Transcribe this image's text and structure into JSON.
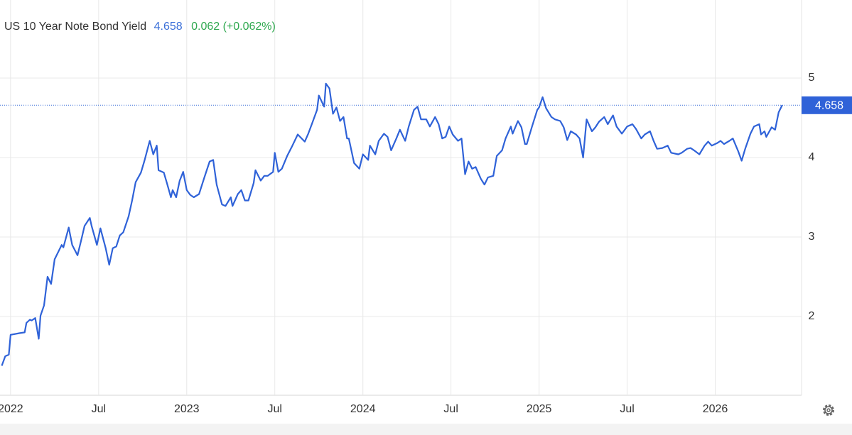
{
  "chart_data": {
    "type": "line",
    "title": "US 10 Year Note Bond Yield",
    "change": "0.062 (+0.062%)",
    "color": "#2f62d8",
    "grid": true,
    "xlim": [
      2021.94,
      2026.49
    ],
    "ylim": [
      1,
      6
    ],
    "yticks": [
      2,
      3,
      4,
      5
    ],
    "xticks": [
      2022,
      {
        "value": 2022.5,
        "label": "Jul"
      },
      2023,
      {
        "value": 2023.5,
        "label": "Jul"
      },
      2024,
      {
        "value": 2024.5,
        "label": "Jul"
      },
      2025,
      {
        "value": 2025.5,
        "label": "Jul"
      },
      2026
    ],
    "x": [
      2021.95,
      2021.97,
      2021.99,
      2022.0,
      2022.05,
      2022.08,
      2022.09,
      2022.11,
      2022.12,
      2022.14,
      2022.16,
      2022.17,
      2022.19,
      2022.21,
      2022.23,
      2022.25,
      2022.29,
      2022.3,
      2022.33,
      2022.35,
      2022.38,
      2022.4,
      2022.42,
      2022.45,
      2022.46,
      2022.49,
      2022.51,
      2022.54,
      2022.56,
      2022.58,
      2022.6,
      2022.62,
      2022.64,
      2022.67,
      2022.69,
      2022.71,
      2022.74,
      2022.76,
      2022.79,
      2022.81,
      2022.83,
      2022.84,
      2022.87,
      2022.89,
      2022.91,
      2022.92,
      2022.94,
      2022.96,
      2022.98,
      2023.0,
      2023.02,
      2023.04,
      2023.07,
      2023.1,
      2023.13,
      2023.15,
      2023.17,
      2023.2,
      2023.22,
      2023.25,
      2023.26,
      2023.29,
      2023.31,
      2023.33,
      2023.35,
      2023.38,
      2023.39,
      2023.42,
      2023.44,
      2023.46,
      2023.49,
      2023.5,
      2023.52,
      2023.54,
      2023.57,
      2023.6,
      2023.63,
      2023.67,
      2023.69,
      2023.71,
      2023.74,
      2023.75,
      2023.78,
      2023.79,
      2023.81,
      2023.83,
      2023.85,
      2023.87,
      2023.89,
      2023.91,
      2023.92,
      2023.95,
      2023.98,
      2024.0,
      2024.03,
      2024.04,
      2024.07,
      2024.09,
      2024.12,
      2024.14,
      2024.16,
      2024.19,
      2024.21,
      2024.24,
      2024.26,
      2024.29,
      2024.31,
      2024.33,
      2024.36,
      2024.38,
      2024.41,
      2024.43,
      2024.45,
      2024.47,
      2024.49,
      2024.51,
      2024.54,
      2024.56,
      2024.58,
      2024.6,
      2024.62,
      2024.64,
      2024.67,
      2024.69,
      2024.71,
      2024.74,
      2024.76,
      2024.79,
      2024.81,
      2024.84,
      2024.85,
      2024.88,
      2024.9,
      2024.92,
      2024.93,
      2024.96,
      2024.99,
      2025.0,
      2025.02,
      2025.04,
      2025.07,
      2025.09,
      2025.12,
      2025.14,
      2025.16,
      2025.18,
      2025.21,
      2025.23,
      2025.25,
      2025.27,
      2025.3,
      2025.32,
      2025.34,
      2025.37,
      2025.39,
      2025.42,
      2025.44,
      2025.47,
      2025.5,
      2025.53,
      2025.55,
      2025.58,
      2025.6,
      2025.63,
      2025.65,
      2025.67,
      2025.7,
      2025.73,
      2025.75,
      2025.79,
      2025.81,
      2025.84,
      2025.86,
      2025.88,
      2025.91,
      2025.94,
      2025.96,
      2025.98,
      2026.01,
      2026.03,
      2026.05,
      2026.08,
      2026.1,
      2026.13,
      2026.15,
      2026.17,
      2026.2,
      2026.22,
      2026.25,
      2026.26,
      2026.28,
      2026.29,
      2026.32,
      2026.34,
      2026.36,
      2026.38
    ],
    "values": [
      1.38,
      1.5,
      1.52,
      1.77,
      1.79,
      1.8,
      1.92,
      1.96,
      1.95,
      1.98,
      1.72,
      2.01,
      2.14,
      2.5,
      2.41,
      2.72,
      2.9,
      2.87,
      3.12,
      2.9,
      2.77,
      2.95,
      3.14,
      3.24,
      3.14,
      2.9,
      3.11,
      2.86,
      2.65,
      2.86,
      2.88,
      3.02,
      3.06,
      3.26,
      3.46,
      3.69,
      3.81,
      3.96,
      4.21,
      4.04,
      4.15,
      3.84,
      3.81,
      3.66,
      3.5,
      3.59,
      3.5,
      3.71,
      3.82,
      3.59,
      3.53,
      3.5,
      3.54,
      3.75,
      3.95,
      3.97,
      3.66,
      3.41,
      3.39,
      3.5,
      3.39,
      3.54,
      3.59,
      3.46,
      3.46,
      3.68,
      3.84,
      3.71,
      3.77,
      3.77,
      3.82,
      4.06,
      3.82,
      3.86,
      4.02,
      4.15,
      4.29,
      4.2,
      4.3,
      4.42,
      4.6,
      4.78,
      4.64,
      4.93,
      4.87,
      4.55,
      4.63,
      4.46,
      4.51,
      4.24,
      4.24,
      3.93,
      3.86,
      4.04,
      3.97,
      4.15,
      4.04,
      4.21,
      4.3,
      4.26,
      4.09,
      4.24,
      4.35,
      4.21,
      4.39,
      4.6,
      4.64,
      4.48,
      4.48,
      4.39,
      4.51,
      4.42,
      4.24,
      4.26,
      4.39,
      4.29,
      4.21,
      4.24,
      3.79,
      3.95,
      3.86,
      3.88,
      3.73,
      3.66,
      3.75,
      3.77,
      4.02,
      4.09,
      4.24,
      4.39,
      4.3,
      4.46,
      4.38,
      4.17,
      4.17,
      4.39,
      4.6,
      4.63,
      4.76,
      4.62,
      4.51,
      4.48,
      4.46,
      4.38,
      4.22,
      4.33,
      4.29,
      4.24,
      4.0,
      4.48,
      4.33,
      4.38,
      4.45,
      4.51,
      4.42,
      4.53,
      4.39,
      4.3,
      4.39,
      4.42,
      4.36,
      4.24,
      4.29,
      4.33,
      4.21,
      4.11,
      4.12,
      4.15,
      4.06,
      4.04,
      4.06,
      4.11,
      4.12,
      4.09,
      4.04,
      4.15,
      4.2,
      4.15,
      4.18,
      4.21,
      4.17,
      4.21,
      4.24,
      4.08,
      3.96,
      4.11,
      4.3,
      4.39,
      4.42,
      4.29,
      4.33,
      4.26,
      4.38,
      4.35,
      4.57,
      4.658
    ]
  }
}
